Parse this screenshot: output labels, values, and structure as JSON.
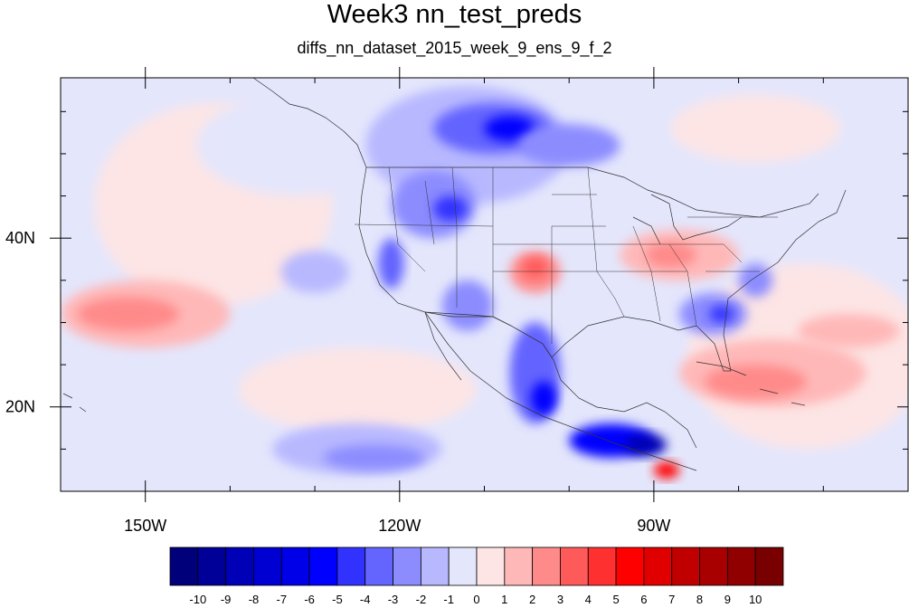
{
  "title": "Week3 nn_test_preds",
  "subtitle": "diffs_nn_dataset_2015_week_9_ens_9_f_2",
  "map": {
    "lon_range": [
      -160,
      -60
    ],
    "lat_range": [
      10,
      59
    ],
    "lon_ticks": [
      {
        "lon": -150,
        "label": "150W"
      },
      {
        "lon": -120,
        "label": "120W"
      },
      {
        "lon": -90,
        "label": "90W"
      }
    ],
    "lat_ticks": [
      {
        "lat": 40,
        "label": "40N"
      },
      {
        "lat": 20,
        "label": "20N"
      }
    ],
    "background_color": "#e4e6fc",
    "anomaly_regions": [
      {
        "name": "north-pacific-positive",
        "value": 0.5,
        "lon": -142,
        "lat": 44,
        "rlon": 14,
        "rlat": 12
      },
      {
        "name": "northeast-pacific-positive",
        "value": 0.5,
        "lon": -78,
        "lat": 53,
        "rlon": 10,
        "rlat": 4
      },
      {
        "name": "subtropical-pacific-positive-1",
        "value": 1.5,
        "lon": -150,
        "lat": 31,
        "rlon": 10,
        "rlat": 4
      },
      {
        "name": "subtropical-pacific-positive-2",
        "value": 2.5,
        "lon": -152,
        "lat": 31,
        "rlon": 6,
        "rlat": 2
      },
      {
        "name": "central-pacific-positive",
        "value": 0.5,
        "lon": -125,
        "lat": 22,
        "rlon": 14,
        "rlat": 5
      },
      {
        "name": "atlantic-positive-1",
        "value": 0.5,
        "lon": -72,
        "lat": 26,
        "rlon": 14,
        "rlat": 11
      },
      {
        "name": "atlantic-positive-2",
        "value": 1.5,
        "lon": -76,
        "lat": 24,
        "rlon": 11,
        "rlat": 4
      },
      {
        "name": "atlantic-positive-3",
        "value": 2.5,
        "lon": -78,
        "lat": 23,
        "rlon": 6,
        "rlat": 2
      },
      {
        "name": "atlantic-positive-4",
        "value": 1.5,
        "lon": -67,
        "lat": 29,
        "rlon": 6,
        "rlat": 2
      },
      {
        "name": "east-us-positive-1",
        "value": 1.5,
        "lon": -87,
        "lat": 38,
        "rlon": 7,
        "rlat": 3
      },
      {
        "name": "east-us-positive-2",
        "value": 2.5,
        "lon": -88,
        "lat": 38,
        "rlon": 3,
        "rlat": 1.5
      },
      {
        "name": "southern-plains-positive-1",
        "value": 2.5,
        "lon": -104,
        "lat": 36,
        "rlon": 3,
        "rlat": 2.5
      },
      {
        "name": "southern-plains-positive-2",
        "value": 3.5,
        "lon": -104,
        "lat": 36.5,
        "rlon": 1.5,
        "rlat": 1.2
      },
      {
        "name": "central-america-positive",
        "value": 5.5,
        "lon": -88.5,
        "lat": 12.5,
        "rlon": 1.5,
        "rlat": 1
      },
      {
        "name": "northeast-pacific-negative",
        "value": -0.5,
        "lon": -132,
        "lat": 51,
        "rlon": 12,
        "rlat": 6
      },
      {
        "name": "east-pacific-negative-1",
        "value": -1.5,
        "lon": -125,
        "lat": 15,
        "rlon": 10,
        "rlat": 3
      },
      {
        "name": "east-pacific-negative-2",
        "value": -2.5,
        "lon": -123,
        "lat": 14,
        "rlon": 6,
        "rlat": 1.5
      },
      {
        "name": "offshore-negative",
        "value": -1.5,
        "lon": -130,
        "lat": 36,
        "rlon": 4,
        "rlat": 2.5
      },
      {
        "name": "western-canada-negative-1",
        "value": -1.5,
        "lon": -112,
        "lat": 51,
        "rlon": 12,
        "rlat": 7
      },
      {
        "name": "western-canada-negative-2",
        "value": -3.5,
        "lon": -109,
        "lat": 53,
        "rlon": 7,
        "rlat": 3
      },
      {
        "name": "western-canada-negative-3",
        "value": -5.5,
        "lon": -107,
        "lat": 53,
        "rlon": 3,
        "rlat": 1.5
      },
      {
        "name": "canadian-prairies-negative",
        "value": -2.5,
        "lon": -100,
        "lat": 51,
        "rlon": 6,
        "rlat": 2.5
      },
      {
        "name": "northern-rockies-negative-1",
        "value": -2.5,
        "lon": -116,
        "lat": 44,
        "rlon": 5,
        "rlat": 4
      },
      {
        "name": "northern-rockies-negative-2",
        "value": -4.5,
        "lon": -114,
        "lat": 43.5,
        "rlon": 2,
        "rlat": 1.5
      },
      {
        "name": "california-negative",
        "value": -3.5,
        "lon": -121,
        "lat": 37,
        "rlon": 1.5,
        "rlat": 3
      },
      {
        "name": "southwest-negative",
        "value": -2.5,
        "lon": -112,
        "lat": 32,
        "rlon": 3,
        "rlat": 3
      },
      {
        "name": "mexico-negative-1",
        "value": -3.5,
        "lon": -104,
        "lat": 24,
        "rlon": 3,
        "rlat": 6
      },
      {
        "name": "mexico-negative-2",
        "value": -5.5,
        "lon": -103,
        "lat": 21,
        "rlon": 1.5,
        "rlat": 2
      },
      {
        "name": "south-mexico-negative-1",
        "value": -5.5,
        "lon": -95,
        "lat": 16,
        "rlon": 5,
        "rlat": 2
      },
      {
        "name": "south-mexico-negative-2",
        "value": -8.5,
        "lon": -91,
        "lat": 15.5,
        "rlon": 2.5,
        "rlat": 1.3
      },
      {
        "name": "southeast-us-negative-1",
        "value": -2.5,
        "lon": -83,
        "lat": 31,
        "rlon": 4,
        "rlat": 2.5
      },
      {
        "name": "southeast-us-negative-2",
        "value": -4.5,
        "lon": -82,
        "lat": 31,
        "rlon": 1.5,
        "rlat": 1
      },
      {
        "name": "mid-atlantic-negative",
        "value": -2.5,
        "lon": -78,
        "lat": 35,
        "rlon": 2,
        "rlat": 2
      }
    ]
  },
  "colorbar": {
    "colors": [
      "#00007a",
      "#000099",
      "#0000b6",
      "#0000d2",
      "#0000e8",
      "#0000ff",
      "#3232ff",
      "#6464ff",
      "#8c8cff",
      "#b8b8ff",
      "#e4e6fc",
      "#fde5e5",
      "#ffb8b8",
      "#ff8a8a",
      "#ff5a5a",
      "#ff3030",
      "#ff0000",
      "#e00000",
      "#c00000",
      "#a80000",
      "#900000",
      "#780000"
    ],
    "labels": [
      "-10",
      "-9",
      "-8",
      "-7",
      "-6",
      "-5",
      "-4",
      "-3",
      "-2",
      "-1",
      "0",
      "1",
      "2",
      "3",
      "4",
      "5",
      "6",
      "7",
      "8",
      "9",
      "10"
    ]
  }
}
